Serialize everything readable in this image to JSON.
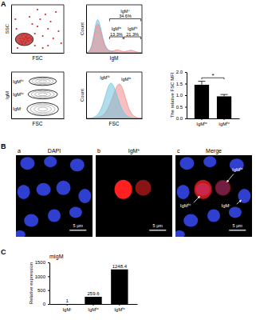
{
  "chart_data": [
    {
      "type": "scatter",
      "x_label": "FSC",
      "y_label": "SSC",
      "xlim": [
        0,
        100
      ],
      "ylim": [
        0,
        100
      ],
      "xticks": [],
      "yticks": [],
      "tick_labels": false,
      "color": "#d62728",
      "x": [
        15,
        18,
        20,
        22,
        25,
        27,
        30,
        32,
        20,
        24,
        28,
        35,
        17,
        23,
        26,
        30,
        33,
        38,
        21,
        29,
        45,
        50,
        60,
        40,
        55,
        70,
        65,
        80,
        75,
        10,
        12,
        45,
        85,
        90,
        35,
        60,
        8,
        50,
        95,
        70
      ],
      "values": [
        20,
        25,
        22,
        30,
        28,
        33,
        26,
        30,
        35,
        38,
        22,
        32,
        30,
        24,
        20,
        36,
        25,
        28,
        18,
        31,
        40,
        55,
        35,
        60,
        70,
        50,
        80,
        30,
        65,
        50,
        10,
        15,
        85,
        45,
        75,
        10,
        70,
        90,
        20,
        15
      ],
      "gate": {
        "x": 25,
        "y": 28,
        "rx": 17,
        "ry": 13
      }
    },
    {
      "type": "area",
      "x_label": "IgM",
      "y_label": "Count",
      "xlim": [
        0,
        100
      ],
      "ylim": [
        0,
        120
      ],
      "xticks": [],
      "yticks": [],
      "tick_labels": false,
      "x": [
        0,
        5,
        10,
        15,
        20,
        25,
        30,
        35,
        40,
        45,
        50,
        55,
        60,
        65,
        70,
        75,
        80,
        85,
        90,
        95,
        100
      ],
      "series": [
        {
          "color": "#6fc3df",
          "values": [
            0,
            2,
            15,
            55,
            92,
            70,
            35,
            15,
            6,
            3,
            2,
            1,
            1,
            0,
            0,
            0,
            0,
            0,
            0,
            0,
            0
          ]
        },
        {
          "color": "#f08a8a",
          "values": [
            0,
            2,
            12,
            45,
            80,
            62,
            30,
            12,
            6,
            4,
            5,
            8,
            6,
            3,
            3,
            5,
            7,
            5,
            2,
            1,
            0
          ]
        }
      ],
      "gates": [
        {
          "label": "IgM+",
          "text": "34.6%",
          "range": [
            42,
            98
          ],
          "level": 85
        },
        {
          "label": "IgMlo",
          "text": "13.3%",
          "range": [
            42,
            66
          ],
          "level": 40
        },
        {
          "label": "IgMhi",
          "text": "21.3%",
          "range": [
            68,
            98
          ],
          "level": 40
        }
      ]
    },
    {
      "type": "contour",
      "x_label": "FSC",
      "y_label": "IgM",
      "xlim": [
        0,
        100
      ],
      "ylim": [
        0,
        100
      ],
      "xticks": [],
      "yticks": [],
      "tick_labels": false,
      "populations": [
        {
          "label": "IgMhi",
          "x": 60,
          "y": 80,
          "rx": 26,
          "ry": 9
        },
        {
          "label": "IgMlo",
          "x": 60,
          "y": 52,
          "rx": 28,
          "ry": 10
        },
        {
          "label": "IgM-",
          "x": 60,
          "y": 20,
          "rx": 30,
          "ry": 14
        }
      ]
    },
    {
      "type": "area",
      "x_label": "FSC",
      "y_label": "Count",
      "xlim": [
        0,
        100
      ],
      "ylim": [
        0,
        120
      ],
      "xticks": [],
      "yticks": [],
      "tick_labels": false,
      "x": [
        0,
        5,
        10,
        15,
        20,
        25,
        30,
        35,
        40,
        45,
        50,
        55,
        60,
        65,
        70,
        75,
        80,
        85,
        90,
        95,
        100
      ],
      "series": [
        {
          "name": "IgMlo",
          "color": "#f08a8a",
          "values": [
            0,
            0,
            0,
            1,
            2,
            4,
            8,
            15,
            28,
            45,
            65,
            85,
            92,
            80,
            55,
            30,
            14,
            6,
            2,
            1,
            0
          ]
        },
        {
          "name": "IgMhi",
          "color": "#6fc3df",
          "values": [
            0,
            0,
            1,
            3,
            8,
            18,
            35,
            60,
            85,
            95,
            82,
            60,
            38,
            20,
            10,
            4,
            2,
            1,
            0,
            0,
            0
          ]
        }
      ]
    },
    {
      "type": "bar",
      "y_label": "The relative FSC MFI",
      "categories": [
        "IgMlo",
        "IgMhi"
      ],
      "values": [
        1.45,
        0.95
      ],
      "errors": [
        0.15,
        0.08
      ],
      "color": "#000000",
      "ylim": [
        0,
        2
      ],
      "yticks": [
        {
          "value": 0,
          "label": "0.0"
        },
        0.5,
        {
          "value": 1,
          "label": "1.0"
        },
        1.5,
        {
          "value": 2,
          "label": "2.0"
        }
      ],
      "annotations": [
        {
          "text": "*",
          "y": 1.75
        }
      ]
    },
    {
      "type": "bar",
      "title": "mIgM",
      "y_label": "Relative expression",
      "categories": [
        "IgM-",
        "IgMlo",
        "IgMhi"
      ],
      "values": [
        1,
        259.6,
        1248.4
      ],
      "color": "#000000",
      "ylim": [
        0,
        1500
      ],
      "yticks": [
        0,
        500,
        1000,
        1500
      ],
      "data_labels": true
    }
  ],
  "figure": {
    "panel_labels": [
      "A",
      "B",
      "C"
    ],
    "microscopy": [
      {
        "letter": "a",
        "title": "DAPI",
        "scale_bar": "5 μm"
      },
      {
        "letter": "b",
        "title": "IgM+",
        "scale_bar": "5 μm"
      },
      {
        "letter": "c",
        "title": "Merge",
        "scale_bar": "5 μm"
      }
    ],
    "cell_labels": [
      "IgMlo",
      "IgM-",
      "IgMhi"
    ]
  }
}
